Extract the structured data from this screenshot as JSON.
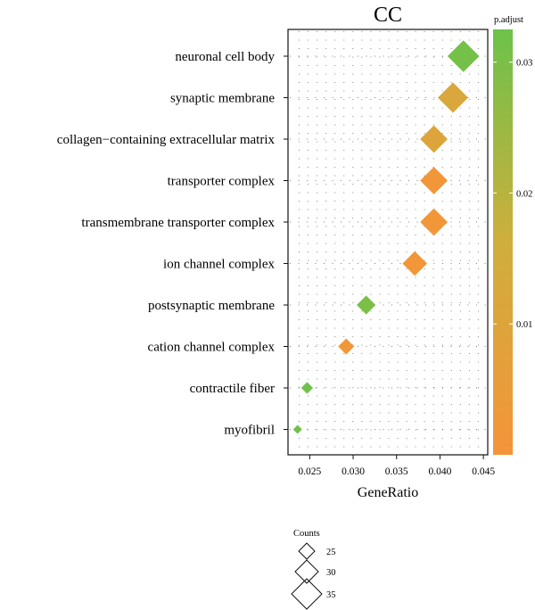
{
  "chart_data": {
    "type": "scatter",
    "title": "CC",
    "xlabel": "GeneRatio",
    "ylabel": "",
    "xlim": [
      0.023,
      0.045
    ],
    "xticks": [
      "0.025",
      "0.030",
      "0.035",
      "0.040",
      "0.045"
    ],
    "xtick_values": [
      0.025,
      0.03,
      0.035,
      0.04,
      0.045
    ],
    "grid": "dotted",
    "marker": "diamond",
    "points": [
      {
        "term": "neuronal cell body",
        "gene_ratio": 0.0427,
        "count": 36,
        "p_adjust": 0.031
      },
      {
        "term": "synaptic membrane",
        "gene_ratio": 0.0415,
        "count": 35,
        "p_adjust": 0.012
      },
      {
        "term": "collagen−containing extracellular matrix",
        "gene_ratio": 0.0393,
        "count": 33,
        "p_adjust": 0.01
      },
      {
        "term": "transporter complex",
        "gene_ratio": 0.0393,
        "count": 33,
        "p_adjust": 0.001
      },
      {
        "term": "transmembrane transporter complex",
        "gene_ratio": 0.0393,
        "count": 33,
        "p_adjust": 0.001
      },
      {
        "term": "ion channel complex",
        "gene_ratio": 0.0371,
        "count": 31,
        "p_adjust": 0.001
      },
      {
        "term": "postsynaptic membrane",
        "gene_ratio": 0.0315,
        "count": 27,
        "p_adjust": 0.03
      },
      {
        "term": "cation channel complex",
        "gene_ratio": 0.0292,
        "count": 25,
        "p_adjust": 0.001
      },
      {
        "term": "contractile fiber",
        "gene_ratio": 0.0247,
        "count": 22,
        "p_adjust": 0.032
      },
      {
        "term": "myofibril",
        "gene_ratio": 0.0236,
        "count": 20,
        "p_adjust": 0.032
      }
    ],
    "color_legend": {
      "title": "p.adjust",
      "ticks": [
        "0.01",
        "0.02",
        "0.03"
      ],
      "tick_values": [
        0.01,
        0.02,
        0.03
      ],
      "range": [
        0.0,
        0.0325
      ],
      "low_color": "#f4943a",
      "mid_color": "#cfae3c",
      "high_color": "#6cc24a"
    },
    "size_legend": {
      "title": "Counts",
      "values": [
        25,
        30,
        35
      ],
      "labels": [
        "25",
        "30",
        "35"
      ]
    }
  }
}
